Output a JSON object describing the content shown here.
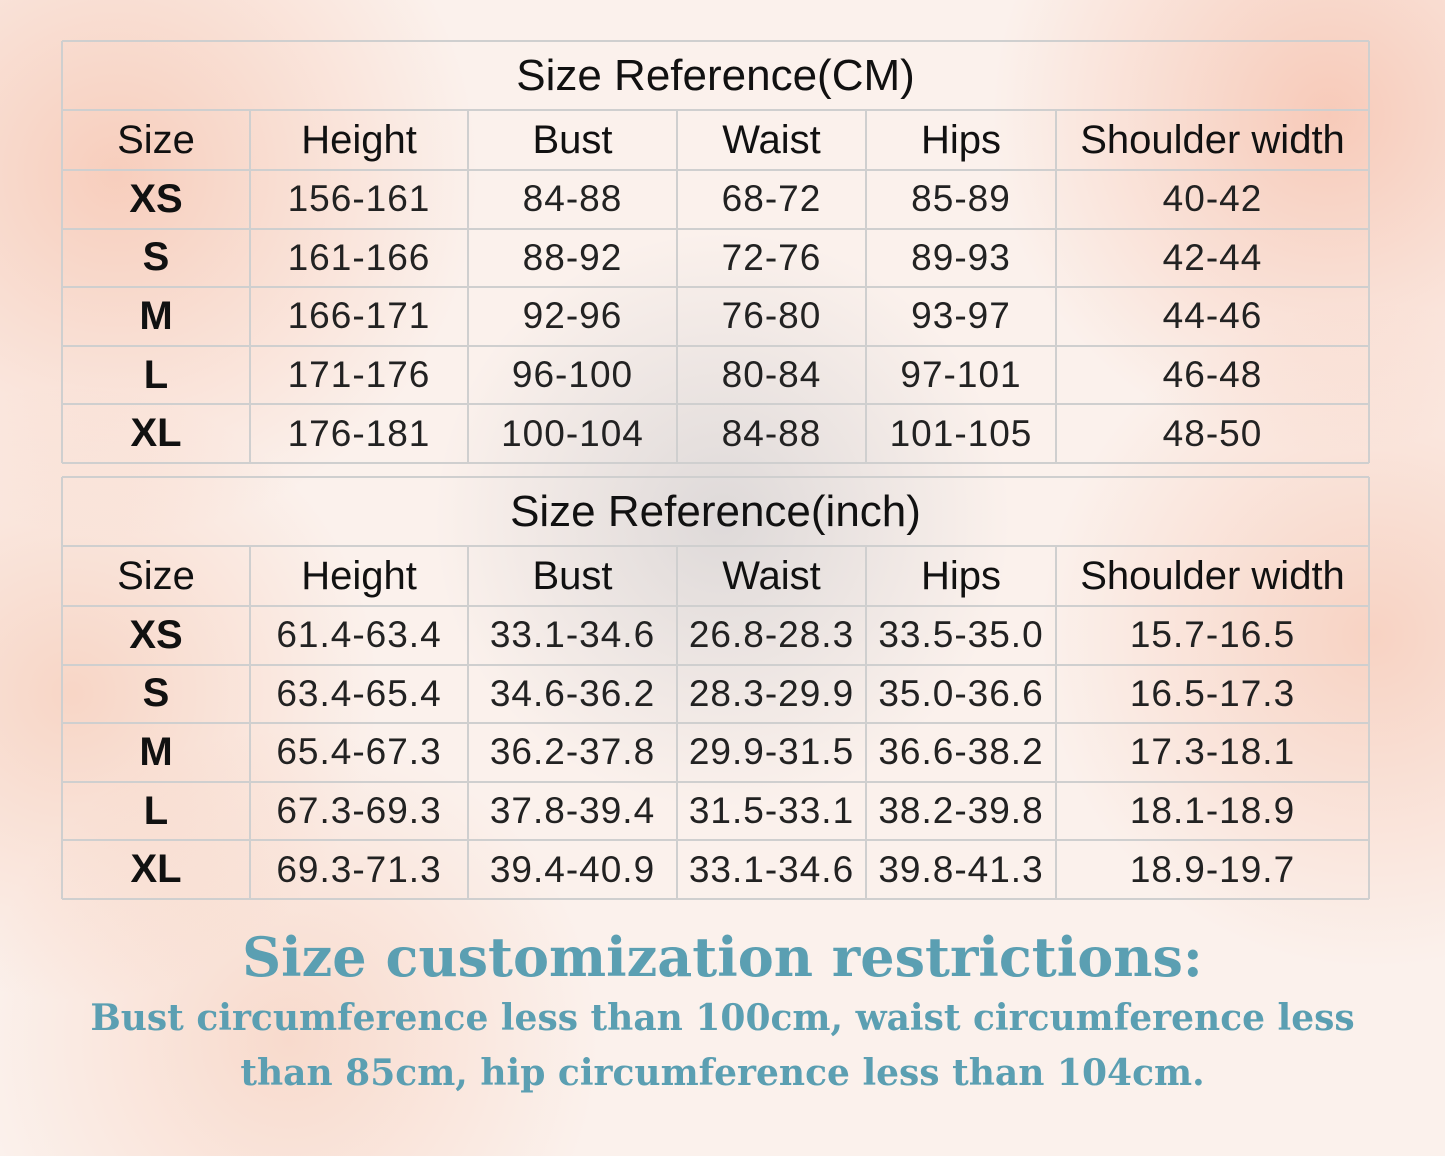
{
  "tables": [
    {
      "title": "Size Reference(CM)",
      "header": [
        "Size",
        "Height",
        "Bust",
        "Waist",
        "Hips",
        "Shoulder width"
      ],
      "rows": [
        [
          "XS",
          "156-161",
          "84-88",
          "68-72",
          "85-89",
          "40-42"
        ],
        [
          "S",
          "161-166",
          "88-92",
          "72-76",
          "89-93",
          "42-44"
        ],
        [
          "M",
          "166-171",
          "92-96",
          "76-80",
          "93-97",
          "44-46"
        ],
        [
          "L",
          "171-176",
          "96-100",
          "80-84",
          "97-101",
          "46-48"
        ],
        [
          "XL",
          "176-181",
          "100-104",
          "84-88",
          "101-105",
          "48-50"
        ]
      ]
    },
    {
      "title": "Size Reference(inch)",
      "header": [
        "Size",
        "Height",
        "Bust",
        "Waist",
        "Hips",
        "Shoulder width"
      ],
      "rows": [
        [
          "XS",
          "61.4-63.4",
          "33.1-34.6",
          "26.8-28.3",
          "33.5-35.0",
          "15.7-16.5"
        ],
        [
          "S",
          "63.4-65.4",
          "34.6-36.2",
          "28.3-29.9",
          "35.0-36.6",
          "16.5-17.3"
        ],
        [
          "M",
          "65.4-67.3",
          "36.2-37.8",
          "29.9-31.5",
          "36.6-38.2",
          "17.3-18.1"
        ],
        [
          "L",
          "67.3-69.3",
          "37.8-39.4",
          "31.5-33.1",
          "38.2-39.8",
          "18.1-18.9"
        ],
        [
          "XL",
          "69.3-71.3",
          "39.4-40.9",
          "33.1-34.6",
          "39.8-41.3",
          "18.9-19.7"
        ]
      ]
    }
  ],
  "restrictions": {
    "heading": "Size customization restrictions:",
    "lines": [
      "Bust circumference less than 100cm, waist circumference less",
      "than 85cm, hip circumference less than 104cm."
    ]
  }
}
